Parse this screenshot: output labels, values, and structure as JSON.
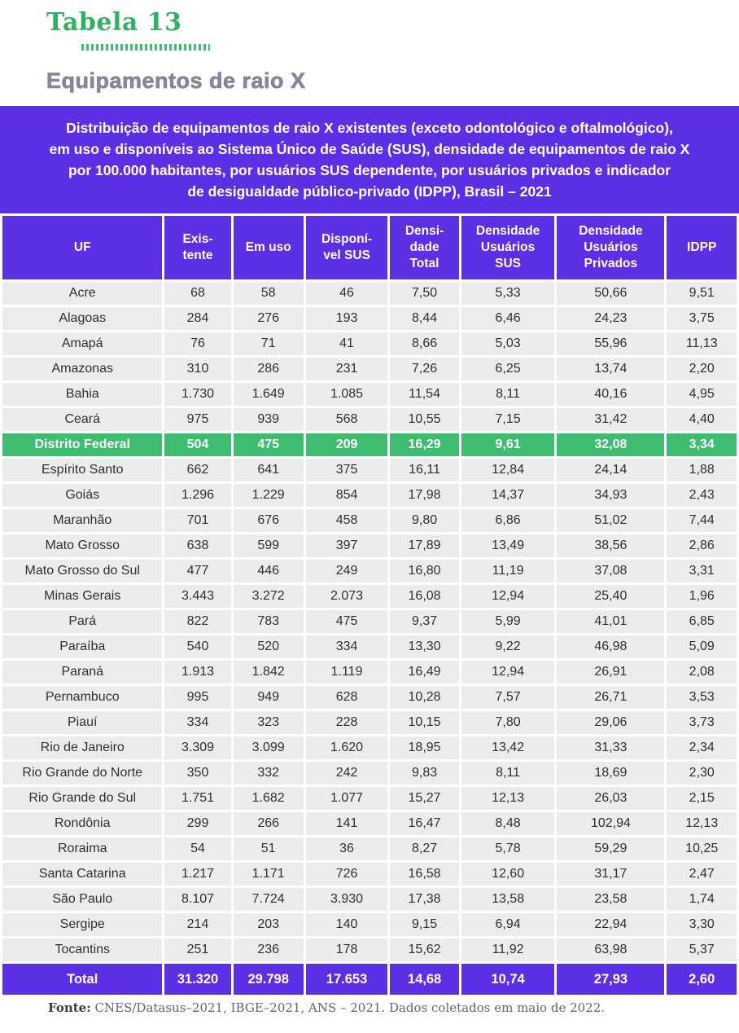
{
  "title": "Tabela 13",
  "subtitle": "Equipamentos de raio X",
  "description": "Distribuição de equipamentos de raio X existentes (exceto odontológico e oftalmológico),\nem uso e disponíveis ao Sistema Único de Saúde (SUS), densidade de equipamentos de raio X\npor 100.000 habitantes, por usuários SUS dependente, por usuários privados e indicador\nde desigualdade público-privado (IDPP), Brasil – 2021",
  "colors": {
    "purple": "#5B2FE4",
    "highlight_green": "#3EBC6F",
    "title_green": "#2FB261",
    "row_gray": "#ECECEC"
  },
  "table": {
    "columns": [
      {
        "key": "uf",
        "label": "UF"
      },
      {
        "key": "existente",
        "label": "Exis-\ntente"
      },
      {
        "key": "em-uso",
        "label": "Em uso"
      },
      {
        "key": "disponivel-sus",
        "label": "Disponí-\nvel SUS"
      },
      {
        "key": "densidade-total",
        "label": "Densi-\ndade\nTotal"
      },
      {
        "key": "densidade-usuarios-sus",
        "label": "Densidade\nUsuários\nSUS"
      },
      {
        "key": "densidade-usuarios-privados",
        "label": "Densidade\nUsuários\nPrivados"
      },
      {
        "key": "idpp",
        "label": "IDPP"
      }
    ],
    "rows": [
      {
        "uf": "Acre",
        "values": [
          "68",
          "58",
          "46",
          "7,50",
          "5,33",
          "50,66",
          "9,51"
        ],
        "highlight": false
      },
      {
        "uf": "Alagoas",
        "values": [
          "284",
          "276",
          "193",
          "8,44",
          "6,46",
          "24,23",
          "3,75"
        ],
        "highlight": false
      },
      {
        "uf": "Amapá",
        "values": [
          "76",
          "71",
          "41",
          "8,66",
          "5,03",
          "55,96",
          "11,13"
        ],
        "highlight": false
      },
      {
        "uf": "Amazonas",
        "values": [
          "310",
          "286",
          "231",
          "7,26",
          "6,25",
          "13,74",
          "2,20"
        ],
        "highlight": false
      },
      {
        "uf": "Bahia",
        "values": [
          "1.730",
          "1.649",
          "1.085",
          "11,54",
          "8,11",
          "40,16",
          "4,95"
        ],
        "highlight": false
      },
      {
        "uf": "Ceará",
        "values": [
          "975",
          "939",
          "568",
          "10,55",
          "7,15",
          "31,42",
          "4,40"
        ],
        "highlight": false
      },
      {
        "uf": "Distrito Federal",
        "values": [
          "504",
          "475",
          "209",
          "16,29",
          "9,61",
          "32,08",
          "3,34"
        ],
        "highlight": true
      },
      {
        "uf": "Espírito Santo",
        "values": [
          "662",
          "641",
          "375",
          "16,11",
          "12,84",
          "24,14",
          "1,88"
        ],
        "highlight": false
      },
      {
        "uf": "Goiás",
        "values": [
          "1.296",
          "1.229",
          "854",
          "17,98",
          "14,37",
          "34,93",
          "2,43"
        ],
        "highlight": false
      },
      {
        "uf": "Maranhão",
        "values": [
          "701",
          "676",
          "458",
          "9,80",
          "6,86",
          "51,02",
          "7,44"
        ],
        "highlight": false
      },
      {
        "uf": "Mato Grosso",
        "values": [
          "638",
          "599",
          "397",
          "17,89",
          "13,49",
          "38,56",
          "2,86"
        ],
        "highlight": false
      },
      {
        "uf": "Mato Grosso do Sul",
        "values": [
          "477",
          "446",
          "249",
          "16,80",
          "11,19",
          "37,08",
          "3,31"
        ],
        "highlight": false
      },
      {
        "uf": "Minas Gerais",
        "values": [
          "3.443",
          "3.272",
          "2.073",
          "16,08",
          "12,94",
          "25,40",
          "1,96"
        ],
        "highlight": false
      },
      {
        "uf": "Pará",
        "values": [
          "822",
          "783",
          "475",
          "9,37",
          "5,99",
          "41,01",
          "6,85"
        ],
        "highlight": false
      },
      {
        "uf": "Paraíba",
        "values": [
          "540",
          "520",
          "334",
          "13,30",
          "9,22",
          "46,98",
          "5,09"
        ],
        "highlight": false
      },
      {
        "uf": "Paraná",
        "values": [
          "1.913",
          "1.842",
          "1.119",
          "16,49",
          "12,94",
          "26,91",
          "2,08"
        ],
        "highlight": false
      },
      {
        "uf": "Pernambuco",
        "values": [
          "995",
          "949",
          "628",
          "10,28",
          "7,57",
          "26,71",
          "3,53"
        ],
        "highlight": false
      },
      {
        "uf": "Piauí",
        "values": [
          "334",
          "323",
          "228",
          "10,15",
          "7,80",
          "29,06",
          "3,73"
        ],
        "highlight": false
      },
      {
        "uf": "Rio de Janeiro",
        "values": [
          "3.309",
          "3.099",
          "1.620",
          "18,95",
          "13,42",
          "31,33",
          "2,34"
        ],
        "highlight": false
      },
      {
        "uf": "Rio Grande do Norte",
        "values": [
          "350",
          "332",
          "242",
          "9,83",
          "8,11",
          "18,69",
          "2,30"
        ],
        "highlight": false
      },
      {
        "uf": "Rio Grande do Sul",
        "values": [
          "1.751",
          "1.682",
          "1.077",
          "15,27",
          "12,13",
          "26,03",
          "2,15"
        ],
        "highlight": false
      },
      {
        "uf": "Rondônia",
        "values": [
          "299",
          "266",
          "141",
          "16,47",
          "8,48",
          "102,94",
          "12,13"
        ],
        "highlight": false
      },
      {
        "uf": "Roraima",
        "values": [
          "54",
          "51",
          "36",
          "8,27",
          "5,78",
          "59,29",
          "10,25"
        ],
        "highlight": false
      },
      {
        "uf": "Santa Catarina",
        "values": [
          "1.217",
          "1.171",
          "726",
          "16,58",
          "12,60",
          "31,17",
          "2,47"
        ],
        "highlight": false
      },
      {
        "uf": "São Paulo",
        "values": [
          "8.107",
          "7.724",
          "3.930",
          "17,38",
          "13,58",
          "23,58",
          "1,74"
        ],
        "highlight": false
      },
      {
        "uf": "Sergipe",
        "values": [
          "214",
          "203",
          "140",
          "9,15",
          "6,94",
          "22,94",
          "3,30"
        ],
        "highlight": false
      },
      {
        "uf": "Tocantins",
        "values": [
          "251",
          "236",
          "178",
          "15,62",
          "11,92",
          "63,98",
          "5,37"
        ],
        "highlight": false
      }
    ],
    "total": {
      "uf": "Total",
      "values": [
        "31.320",
        "29.798",
        "17.653",
        "14,68",
        "10,74",
        "27,93",
        "2,60"
      ]
    }
  },
  "footer": {
    "label": "Fonte:",
    "text": "CNES/Datasus–2021, IBGE–2021, ANS – 2021. Dados coletados em maio de 2022."
  }
}
